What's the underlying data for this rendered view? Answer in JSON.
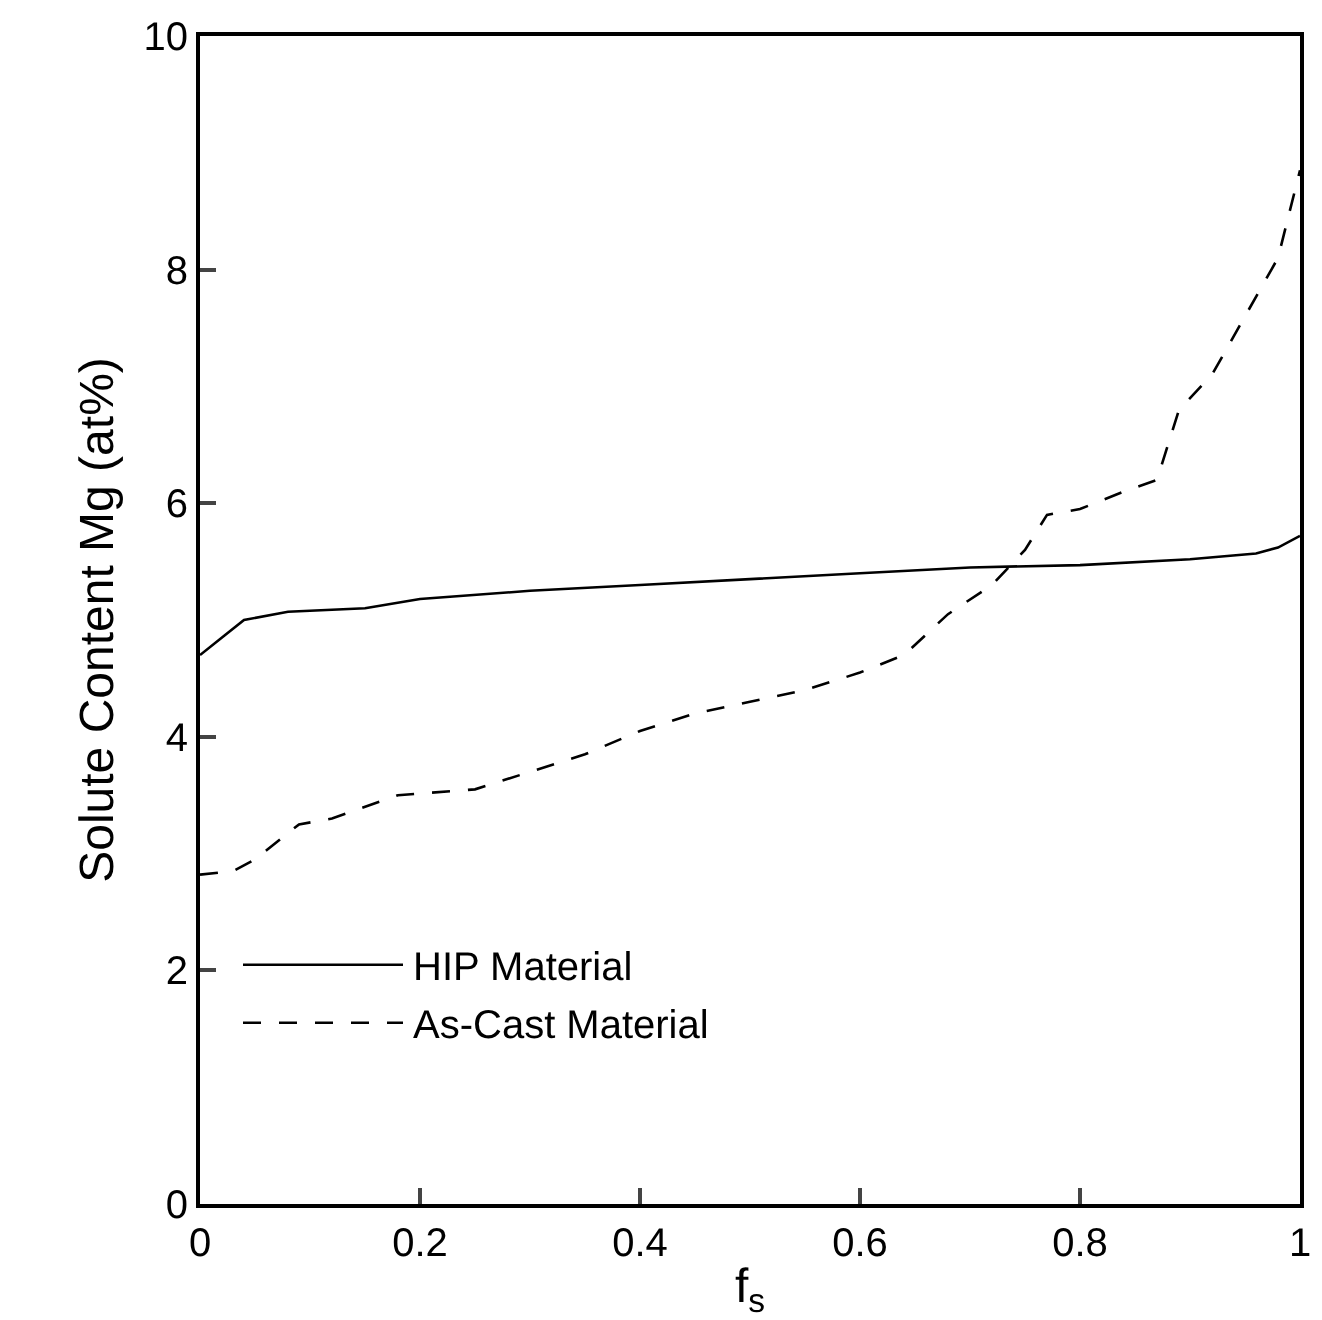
{
  "chart_data": {
    "type": "line",
    "xlabel": "f$_{s}$",
    "ylabel": "Solute Content Mg (at%)",
    "xlim": [
      0,
      1
    ],
    "ylim": [
      0,
      10
    ],
    "xticks": [
      0,
      0.2,
      0.4,
      0.6,
      0.8,
      1
    ],
    "yticks": [
      0,
      2,
      4,
      6,
      8,
      10
    ],
    "legend": "bottom left",
    "marker": "none",
    "series": [
      {
        "name": "HIP Material",
        "color": "#000000",
        "line_style": "solid",
        "x": [
          0,
          0.02,
          0.04,
          0.08,
          0.15,
          0.2,
          0.3,
          0.4,
          0.5,
          0.6,
          0.7,
          0.8,
          0.9,
          0.96,
          0.98,
          1.0
        ],
        "values": [
          4.7,
          4.85,
          5.0,
          5.07,
          5.1,
          5.18,
          5.25,
          5.3,
          5.35,
          5.4,
          5.45,
          5.47,
          5.52,
          5.57,
          5.62,
          5.72
        ]
      },
      {
        "name": "As-Cast Material",
        "color": "#000000",
        "line_style": "dashed",
        "x": [
          0,
          0.03,
          0.05,
          0.09,
          0.12,
          0.18,
          0.25,
          0.3,
          0.35,
          0.4,
          0.45,
          0.5,
          0.55,
          0.6,
          0.64,
          0.68,
          0.72,
          0.75,
          0.77,
          0.8,
          0.84,
          0.87,
          0.89,
          0.92,
          0.95,
          0.98,
          1.0
        ],
        "values": [
          2.82,
          2.85,
          2.95,
          3.25,
          3.3,
          3.5,
          3.55,
          3.7,
          3.85,
          4.05,
          4.2,
          4.3,
          4.4,
          4.55,
          4.7,
          5.05,
          5.3,
          5.6,
          5.9,
          5.95,
          6.1,
          6.2,
          6.8,
          7.1,
          7.6,
          8.1,
          8.85
        ]
      }
    ]
  }
}
